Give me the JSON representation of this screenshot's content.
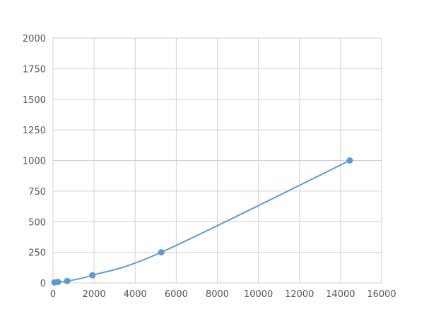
{
  "chart_data": {
    "type": "scatter",
    "title": "",
    "xlabel": "",
    "ylabel": "",
    "xlim": [
      0,
      16000
    ],
    "ylim": [
      0,
      2000
    ],
    "xticks": [
      0,
      2000,
      4000,
      6000,
      8000,
      10000,
      12000,
      14000,
      16000
    ],
    "yticks": [
      0,
      250,
      500,
      750,
      1000,
      1250,
      1500,
      1750,
      2000
    ],
    "grid": true,
    "smooth_line": true,
    "color": "#5b9bd5",
    "series": [
      {
        "x": [
          70,
          240,
          690,
          1920,
          5270,
          14450
        ],
        "y": [
          3.9,
          7.8,
          15.6,
          62.5,
          250,
          1000
        ]
      }
    ]
  }
}
